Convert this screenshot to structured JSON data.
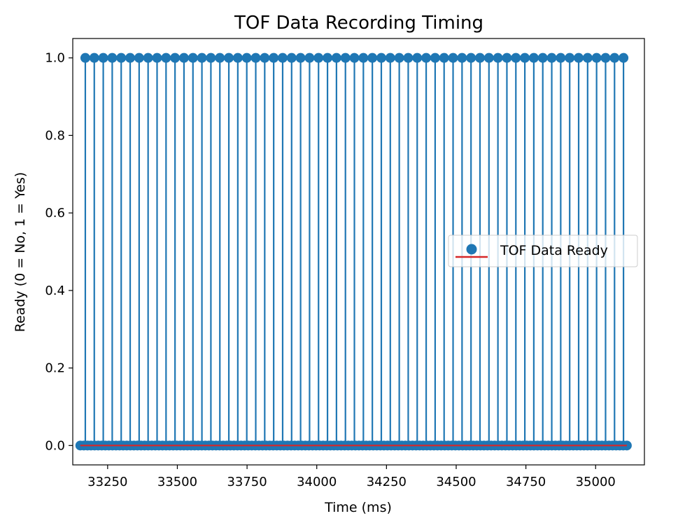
{
  "chart_data": {
    "type": "stem",
    "title": "TOF Data Recording Timing",
    "xlabel": "Time (ms)",
    "ylabel": "Ready (0 = No, 1 = Yes)",
    "xlim": [
      33125,
      35175
    ],
    "ylim": [
      -0.05,
      1.05
    ],
    "xticks": [
      33250,
      33500,
      33750,
      34000,
      34250,
      34500,
      34750,
      35000
    ],
    "yticks": [
      0.0,
      0.2,
      0.4,
      0.6,
      0.8,
      1.0
    ],
    "ytick_labels": [
      "0.0",
      "0.2",
      "0.4",
      "0.6",
      "0.8",
      "1.0"
    ],
    "grid": false,
    "legend": {
      "label": "TOF Data Ready",
      "placement": "center-right"
    },
    "colors": {
      "marker": "#1f77b4",
      "stem": "#1f77b4",
      "baseline": "#d62728"
    },
    "series": [
      {
        "name": "TOF Data Ready",
        "x_start": 33152,
        "x_end": 35112,
        "samples": 154,
        "ready_pulse_start": 33170,
        "ready_pulse_end": 35100,
        "ready_pulse_count": 61,
        "ready_value": 1,
        "idle_value": 0
      }
    ]
  }
}
